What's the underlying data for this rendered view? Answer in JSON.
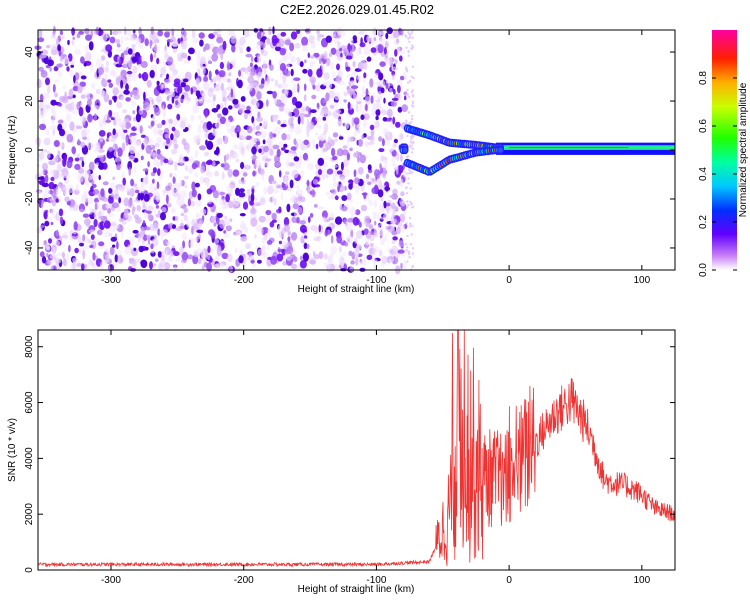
{
  "title": "C2E2.2026.029.01.45.R02",
  "chart_data": [
    {
      "type": "heatmap",
      "xlabel": "Height of straight line (km)",
      "ylabel": "Frequency (Hz)",
      "xlim": [
        -355,
        125
      ],
      "ylim": [
        -49,
        49
      ],
      "xticks": [
        -300,
        -200,
        -100,
        0,
        100
      ],
      "yticks": [
        -40,
        -20,
        0,
        20,
        40
      ],
      "noise_region_x": [
        -355,
        -78
      ],
      "signal_track": [
        {
          "x": -78,
          "y_upper": 9,
          "y_lower": -5
        },
        {
          "x": -60,
          "y_upper": 6,
          "y_lower": -9
        },
        {
          "x": -45,
          "y_upper": 3,
          "y_lower": -4
        },
        {
          "x": -25,
          "y_upper": 2,
          "y_lower": -1
        },
        {
          "x": -10,
          "y_upper": 1,
          "y_lower": 0
        },
        {
          "x": 0,
          "y_upper": 1,
          "y_lower": 0
        },
        {
          "x": 125,
          "y_upper": 1,
          "y_lower": 0
        }
      ],
      "colorbar": {
        "label": "Normalized spectral amplitude",
        "range": [
          0,
          1
        ],
        "ticks": [
          0.0,
          0.2,
          0.4,
          0.6,
          0.8
        ],
        "tick_labels": [
          "0.0",
          "0.2",
          "0.4",
          "0.6",
          "0.8"
        ]
      }
    },
    {
      "type": "line",
      "xlabel": "Height of straight line (km)",
      "ylabel": "SNR (10 * v/v)",
      "xlim": [
        -355,
        125
      ],
      "ylim": [
        0,
        8600
      ],
      "xticks": [
        -300,
        -200,
        -100,
        0,
        100
      ],
      "yticks": [
        0,
        2000,
        4000,
        6000,
        8000
      ],
      "color": "#ee3333",
      "envelope": [
        {
          "x": -355,
          "y": 200
        },
        {
          "x": -100,
          "y": 200
        },
        {
          "x": -60,
          "y": 300
        },
        {
          "x": -45,
          "y": 2000
        },
        {
          "x": -38,
          "y": 6000
        },
        {
          "x": -30,
          "y": 4500
        },
        {
          "x": -20,
          "y": 3300
        },
        {
          "x": 0,
          "y": 3300
        },
        {
          "x": 20,
          "y": 4600
        },
        {
          "x": 35,
          "y": 5600
        },
        {
          "x": 47,
          "y": 6100
        },
        {
          "x": 60,
          "y": 5000
        },
        {
          "x": 72,
          "y": 3200
        },
        {
          "x": 90,
          "y": 3000
        },
        {
          "x": 100,
          "y": 2700
        },
        {
          "x": 110,
          "y": 2200
        },
        {
          "x": 125,
          "y": 2000
        }
      ]
    }
  ]
}
